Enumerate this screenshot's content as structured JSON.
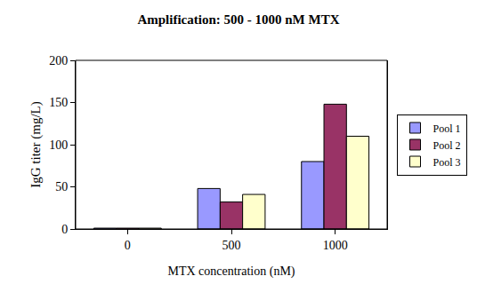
{
  "chart_data": {
    "type": "bar",
    "title": "Amplification: 500 - 1000 nM MTX",
    "x_label": "MTX concentration (nM)",
    "y_label": "IgG titer (mg/L)",
    "categories": [
      "0",
      "500",
      "1000"
    ],
    "series": [
      {
        "name": "Pool 1",
        "color": "#9999ff",
        "values": [
          1,
          48,
          80
        ]
      },
      {
        "name": "Pool 2",
        "color": "#993366",
        "values": [
          1,
          32,
          148
        ]
      },
      {
        "name": "Pool 3",
        "color": "#ffffcc",
        "values": [
          1,
          41,
          110
        ]
      }
    ],
    "ylim": [
      0,
      200
    ],
    "yticks": [
      0,
      50,
      100,
      150,
      200
    ],
    "grid": false,
    "legend": "right"
  }
}
